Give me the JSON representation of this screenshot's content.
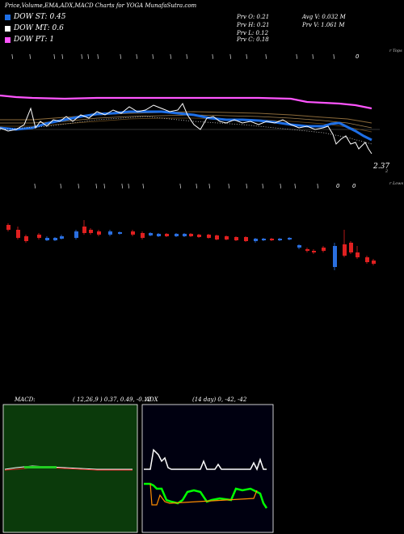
{
  "header": {
    "title": "Price,Volume,EMA,ADX,MACD Charts for YOGA MunafaSutra.com",
    "legend": [
      {
        "label": "DOW ST: 0.45",
        "color": "#1e6fe6"
      },
      {
        "label": "DOW MT: 0.6",
        "color": "#ffffff"
      },
      {
        "label": "DOW PT: 1",
        "color": "#ff55ff"
      }
    ],
    "stats": {
      "prv_o": "Prv  O: 0.21",
      "prv_h": "Prv  H: 0.21",
      "prv_l": "Prv  L: 0.12",
      "prv_c": "Prv  C: 0.18",
      "avg_v": "Avg V: 0.032  M",
      "prv_v": "Prv   V: 1.061 M"
    }
  },
  "price_panel": {
    "right_label": "r Tops",
    "price_label": "2.37",
    "price_sub": "2",
    "top_markers": [
      "\\",
      "\\",
      "\\",
      "\\",
      "\\",
      "\\",
      "\\",
      "\\",
      "\\",
      "\\",
      "\\",
      "\\",
      "\\",
      "\\",
      "\\",
      "\\",
      "\\",
      "\\",
      "\\",
      "\\",
      "\\",
      "\\",
      "0"
    ]
  },
  "candle_panel": {
    "right_label": "r Lows",
    "top_markers": [
      "\\",
      "\\",
      "\\",
      "\\",
      "\\",
      "\\",
      "\\",
      "\\",
      "\\",
      "\\",
      "\\",
      "\\",
      "\\",
      "\\",
      "\\",
      "\\",
      "\\",
      "\\",
      "0",
      "0"
    ]
  },
  "macd_panel": {
    "label": "MACD:",
    "params": "( 12,26,9 ) 0.37,  0.49,  -0.12"
  },
  "adx_panel": {
    "label": "ADX",
    "params": "(14  day) 0,  -42,  -42"
  },
  "colors": {
    "ema_pink": "#ff55ff",
    "ema_blue": "#1e6fe6",
    "price_white": "#ffffff",
    "ema_brown": "#8b6a3a",
    "candle_red": "#e02020",
    "candle_blue": "#2a6fe0",
    "macd_bg": "#0b3a0b",
    "adx_green": "#00ff00",
    "adx_orange": "#ff8c00"
  }
}
